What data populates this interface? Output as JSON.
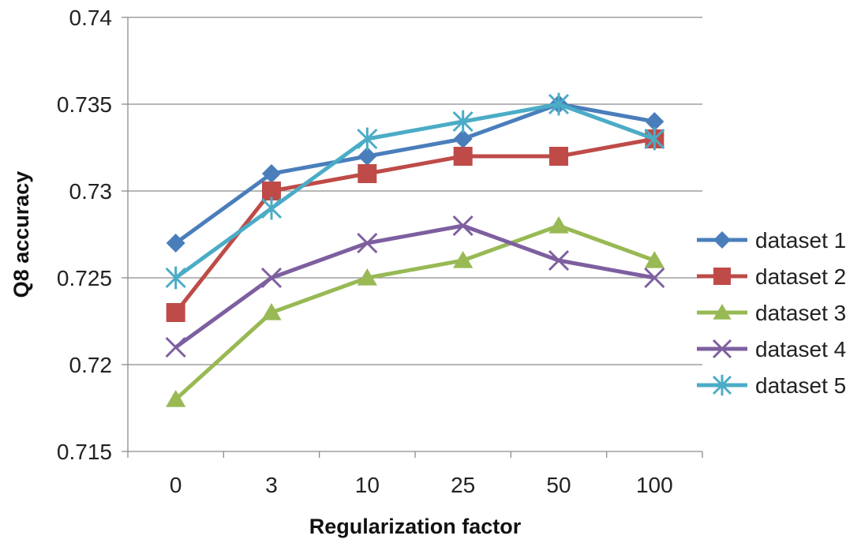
{
  "chart_data": {
    "type": "line",
    "categories": [
      "0",
      "3",
      "10",
      "25",
      "50",
      "100"
    ],
    "xlabel": "Regularization factor",
    "ylabel": "Q8 accuracy",
    "ylim": [
      0.715,
      0.74
    ],
    "yticks": [
      "0.715",
      "0.72",
      "0.725",
      "0.73",
      "0.735",
      "0.74"
    ],
    "ytick_values": [
      0.715,
      0.72,
      0.725,
      0.73,
      0.735,
      0.74
    ],
    "grid": "horizontal",
    "legend_position": "right",
    "series": [
      {
        "name": "dataset 1",
        "values": [
          0.727,
          0.731,
          0.732,
          0.733,
          0.735,
          0.734
        ],
        "color": "#4a7ebb",
        "marker": "diamond"
      },
      {
        "name": "dataset 2",
        "values": [
          0.723,
          0.73,
          0.731,
          0.732,
          0.732,
          0.733
        ],
        "color": "#be4b48",
        "marker": "square"
      },
      {
        "name": "dataset 3",
        "values": [
          0.718,
          0.723,
          0.725,
          0.726,
          0.728,
          0.726
        ],
        "color": "#98b954",
        "marker": "triangle"
      },
      {
        "name": "dataset 4",
        "values": [
          0.721,
          0.725,
          0.727,
          0.728,
          0.726,
          0.725
        ],
        "color": "#7d5fa0",
        "marker": "x"
      },
      {
        "name": "dataset 5",
        "values": [
          0.725,
          0.729,
          0.733,
          0.734,
          0.735,
          0.733
        ],
        "color": "#4bacc6",
        "marker": "star"
      }
    ]
  }
}
